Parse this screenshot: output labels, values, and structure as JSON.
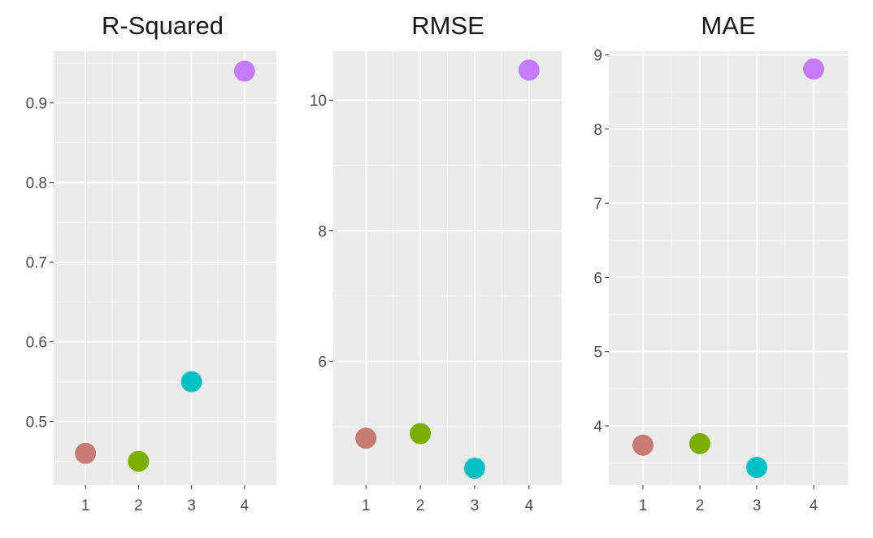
{
  "chart_data": [
    {
      "type": "scatter",
      "title": "R-Squared",
      "xlabel": "",
      "ylabel": "",
      "x": [
        1,
        2,
        3,
        4
      ],
      "x_ticks": [
        "1",
        "2",
        "3",
        "4"
      ],
      "y": [
        0.46,
        0.45,
        0.55,
        0.94
      ],
      "ylim": [
        0.42,
        0.965
      ],
      "y_ticks": [
        0.5,
        0.6,
        0.7,
        0.8,
        0.9
      ],
      "y_tick_labels": [
        "0.5",
        "0.6",
        "0.7",
        "0.8",
        "0.9"
      ],
      "point_colors": [
        "#C77C72",
        "#7CAE00",
        "#00BFC4",
        "#C77CFF"
      ],
      "grid": true,
      "legend": "none"
    },
    {
      "type": "scatter",
      "title": "RMSE",
      "xlabel": "",
      "ylabel": "",
      "x": [
        1,
        2,
        3,
        4
      ],
      "x_ticks": [
        "1",
        "2",
        "3",
        "4"
      ],
      "y": [
        4.82,
        4.89,
        4.36,
        10.46
      ],
      "ylim": [
        4.1,
        10.75
      ],
      "y_ticks": [
        6,
        8,
        10
      ],
      "y_tick_labels": [
        "6",
        "8",
        "10"
      ],
      "point_colors": [
        "#C77C72",
        "#7CAE00",
        "#00BFC4",
        "#C77CFF"
      ],
      "grid": true,
      "legend": "none"
    },
    {
      "type": "scatter",
      "title": "MAE",
      "xlabel": "",
      "ylabel": "",
      "x": [
        1,
        2,
        3,
        4
      ],
      "x_ticks": [
        "1",
        "2",
        "3",
        "4"
      ],
      "y": [
        3.74,
        3.76,
        3.44,
        8.81
      ],
      "ylim": [
        3.2,
        9.05
      ],
      "y_ticks": [
        4,
        5,
        6,
        7,
        8,
        9
      ],
      "y_tick_labels": [
        "4",
        "5",
        "6",
        "7",
        "8",
        "9"
      ],
      "point_colors": [
        "#C77C72",
        "#7CAE00",
        "#00BFC4",
        "#C77CFF"
      ],
      "grid": true,
      "legend": "none"
    }
  ],
  "colors": {
    "panel_background": "#EBEBEB",
    "grid_major": "#FFFFFF",
    "grid_minor": "#F5F5F5",
    "tick_text": "#4D4D4D",
    "title_text": "#1A1A1A"
  }
}
